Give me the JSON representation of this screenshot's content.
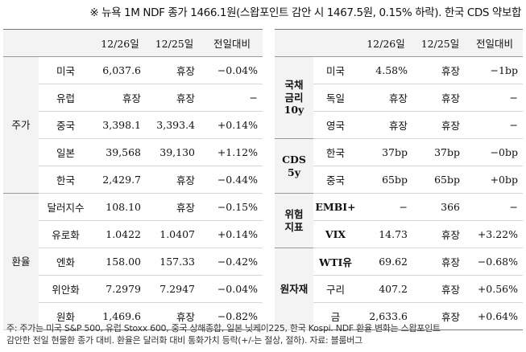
{
  "header": {
    "title": "※ 뉴욕 1M NDF 종가 1466.1원(스왑포인트 감안 시 1467.5원, 0.15% 하락). 한국 CDS 약보합"
  },
  "left_table": {
    "columns": [
      "12/26일",
      "12/25일",
      "전일대비"
    ],
    "groups": [
      {
        "name": "주가",
        "rows": [
          {
            "name": "미국",
            "d26": "6,037.6",
            "d25": "휴장",
            "change": "−0.04%"
          },
          {
            "name": "유럽",
            "d26": "휴장",
            "d25": "휴장",
            "change": "−"
          },
          {
            "name": "중국",
            "d26": "3,398.1",
            "d25": "3,393.4",
            "change": "+0.14%"
          },
          {
            "name": "일본",
            "d26": "39,568",
            "d25": "39,130",
            "change": "+1.12%"
          },
          {
            "name": "한국",
            "d26": "2,429.7",
            "d25": "휴장",
            "change": "−0.44%"
          }
        ]
      },
      {
        "name": "환율",
        "rows": [
          {
            "name": "달러지수",
            "d26": "108.10",
            "d25": "휴장",
            "change": "−0.15%"
          },
          {
            "name": "유로화",
            "d26": "1.0422",
            "d25": "1.0407",
            "change": "+0.14%"
          },
          {
            "name": "엔화",
            "d26": "158.00",
            "d25": "157.33",
            "change": "−0.42%"
          },
          {
            "name": "위안화",
            "d26": "7.2979",
            "d25": "7.2947",
            "change": "−0.04%"
          },
          {
            "name": "원화",
            "d26": "1,469.6",
            "d25": "휴장",
            "change": "−0.82%"
          }
        ]
      }
    ]
  },
  "right_table": {
    "columns": [
      "12/26일",
      "12/25일",
      "전일대비"
    ],
    "groups": [
      {
        "name_lines": [
          "국채",
          "금리",
          "10y"
        ],
        "rows": [
          {
            "name": "미국",
            "d26": "4.58%",
            "d25": "휴장",
            "change": "−1bp"
          },
          {
            "name": "독일",
            "d26": "휴장",
            "d25": "휴장",
            "change": "−"
          },
          {
            "name": "영국",
            "d26": "휴장",
            "d25": "휴장",
            "change": "−"
          }
        ]
      },
      {
        "name_lines": [
          "CDS",
          "5y"
        ],
        "rows": [
          {
            "name": "한국",
            "d26": "37bp",
            "d25": "37bp",
            "change": "−0bp"
          },
          {
            "name": "중국",
            "d26": "65bp",
            "d25": "65bp",
            "change": "+0bp"
          }
        ]
      },
      {
        "name_lines": [
          "위험",
          "지표"
        ],
        "rows": [
          {
            "name": "EMBI+",
            "d26": "−",
            "d25": "366",
            "change": "−"
          },
          {
            "name": "VIX",
            "d26": "14.73",
            "d25": "휴장",
            "change": "+3.22%"
          }
        ]
      },
      {
        "name_lines": [
          "원자재"
        ],
        "rows": [
          {
            "name": "WTI유",
            "d26": "69.62",
            "d25": "휴장",
            "change": "−0.68%"
          },
          {
            "name": "구리",
            "d26": "407.2",
            "d25": "휴장",
            "change": "+0.56%"
          },
          {
            "name": "금",
            "d26": "2,633.6",
            "d25": "휴장",
            "change": "+0.64%"
          }
        ]
      }
    ]
  },
  "footer": {
    "line1": "주: 주가는 미국 S&P 500, 유럽 Stoxx 600, 중국 상해종합, 일본 닛케이225, 한국 Kospi. NDF 환율 변화는 스왑포인트",
    "line2": "감안한 전일 현물환 종가 대비. 환율은 달러화 대비 통화가치 등락(+/-는 절상, 절하). 자료: 블룸버그"
  }
}
